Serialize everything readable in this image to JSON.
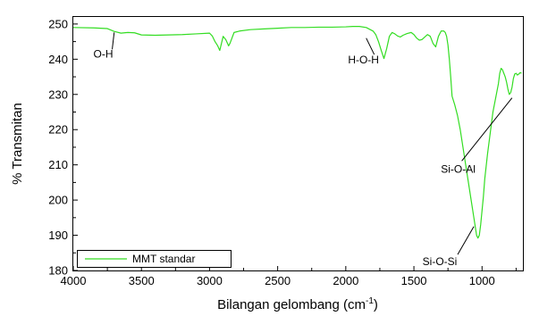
{
  "chart_data": {
    "type": "line",
    "title": "",
    "xlabel": "Bilangan gelombang (cm",
    "xlabel_sup": "-1",
    "xlabel_suffix": ")",
    "ylabel": "% Transmitan",
    "xlim": [
      4000,
      700
    ],
    "ylim": [
      180,
      252
    ],
    "x_reversed": true,
    "grid": false,
    "legend_position": "bottom-left",
    "x_ticks": [
      4000,
      3500,
      3000,
      2500,
      2000,
      1500,
      1000
    ],
    "y_ticks": [
      180,
      190,
      200,
      210,
      220,
      230,
      240,
      250
    ],
    "series": [
      {
        "name": "MMT standar",
        "color": "#33dd22",
        "x": [
          4000,
          3850,
          3750,
          3700,
          3650,
          3600,
          3550,
          3500,
          3400,
          3300,
          3200,
          3100,
          3000,
          2980,
          2960,
          2940,
          2925,
          2900,
          2880,
          2860,
          2850,
          2820,
          2780,
          2700,
          2600,
          2500,
          2400,
          2300,
          2200,
          2100,
          2000,
          1950,
          1900,
          1850,
          1800,
          1780,
          1760,
          1740,
          1720,
          1700,
          1680,
          1660,
          1640,
          1620,
          1600,
          1580,
          1550,
          1520,
          1500,
          1480,
          1460,
          1440,
          1420,
          1400,
          1380,
          1360,
          1340,
          1320,
          1300,
          1280,
          1270,
          1260,
          1250,
          1240,
          1230,
          1220,
          1200,
          1180,
          1160,
          1140,
          1120,
          1100,
          1080,
          1060,
          1050,
          1040,
          1030,
          1020,
          1010,
          1000,
          990,
          980,
          960,
          940,
          920,
          900,
          880,
          870,
          860,
          850,
          840,
          830,
          820,
          810,
          800,
          790,
          780,
          770,
          760,
          750,
          740,
          730,
          720,
          710
        ],
        "y": [
          249,
          248.9,
          248.7,
          247.9,
          247.4,
          247.6,
          247.5,
          246.9,
          246.8,
          246.9,
          247.0,
          247.2,
          247.4,
          246.6,
          245.0,
          243.8,
          242.5,
          246.5,
          245.5,
          243.8,
          244.5,
          247.6,
          248.0,
          248.4,
          248.6,
          248.8,
          249.0,
          249.0,
          249.1,
          249.1,
          249.2,
          249.3,
          249.3,
          249.0,
          248.0,
          247.0,
          245.0,
          242.5,
          240.2,
          243.0,
          246.5,
          247.6,
          247.2,
          246.6,
          246.3,
          246.8,
          247.3,
          247.6,
          247.0,
          246.0,
          245.4,
          245.6,
          246.3,
          247.0,
          246.5,
          244.5,
          243.5,
          246.5,
          248.0,
          248.0,
          247.6,
          246.5,
          244.0,
          240.0,
          235.0,
          229.5,
          227.0,
          224.0,
          220.0,
          215.0,
          210.0,
          205.0,
          200.0,
          195.0,
          192.5,
          190.0,
          189.2,
          190.0,
          193.0,
          197.0,
          201.0,
          206.0,
          213.0,
          219.0,
          225.0,
          229.0,
          233.0,
          236.0,
          237.4,
          237.0,
          236.0,
          235.0,
          233.5,
          231.5,
          230.0,
          230.5,
          232.0,
          234.5,
          235.8,
          236.0,
          235.5,
          235.8,
          236.2,
          236.0
        ]
      }
    ],
    "annotations": [
      {
        "text": "O-H",
        "x": 3700,
        "y": 247.6,
        "tx": 3780,
        "ty": 240.5
      },
      {
        "text": "H-O-H",
        "x": 1850,
        "y": 246.0,
        "tx": 1870,
        "ty": 238.8
      },
      {
        "text": "Si-O-Al",
        "x": 780,
        "y": 229.0,
        "tx": 1175,
        "ty": 207.8
      },
      {
        "text": "Si-O-Si",
        "x": 1060,
        "y": 192.5,
        "tx": 1310,
        "ty": 181.5
      }
    ]
  }
}
